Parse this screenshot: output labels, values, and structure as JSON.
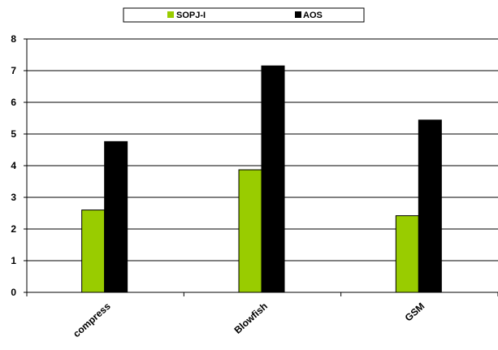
{
  "chart_data": {
    "type": "bar",
    "categories": [
      "compress",
      "Blowfish",
      "GSM"
    ],
    "series": [
      {
        "name": "SOPJ-I",
        "color": "#99cc00",
        "values": [
          2.6,
          3.87,
          2.42
        ]
      },
      {
        "name": "AOS",
        "color": "#000000",
        "values": [
          4.76,
          7.15,
          5.44
        ]
      }
    ],
    "ylim": [
      0,
      8
    ],
    "yticks": [
      0,
      1,
      2,
      3,
      4,
      5,
      6,
      7,
      8
    ],
    "grid": true,
    "legend_position": "top"
  }
}
